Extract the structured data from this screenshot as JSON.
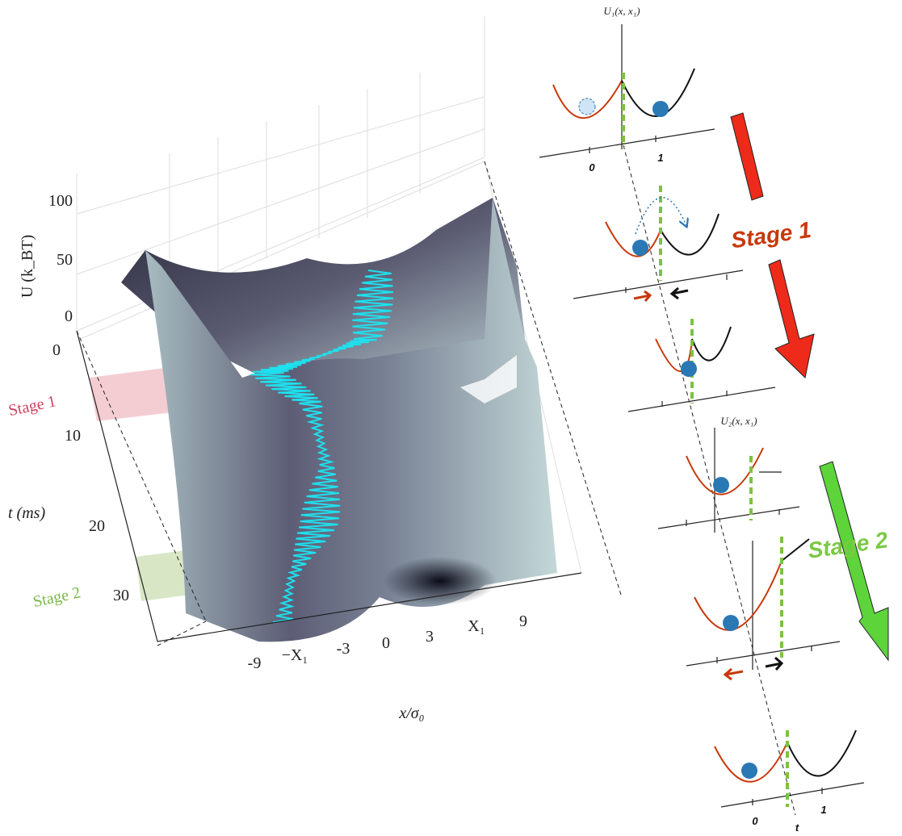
{
  "surface_plot": {
    "z_axis_label": "U (k_BT)",
    "z_ticks": [
      "100",
      "50",
      "0"
    ],
    "t_axis_label": "t (ms)",
    "t_ticks": [
      "0",
      "10",
      "20",
      "30"
    ],
    "stage_labels": [
      "Stage 1",
      "Stage 2"
    ],
    "x_ticks": [
      "-9",
      "−X₁",
      "-3",
      "0",
      "3",
      "X₁",
      "9"
    ],
    "x_axis_label": "x/σ₀"
  },
  "protocol": {
    "u1_label": "U₁(x, x₁)",
    "u2_label": "U₂(x, x₁)",
    "top_ticks": [
      "0",
      "1"
    ],
    "bottom_ticks": [
      "0",
      "1"
    ],
    "stages": [
      "Stage 1",
      "Stage 2"
    ],
    "time_label": "t"
  }
}
